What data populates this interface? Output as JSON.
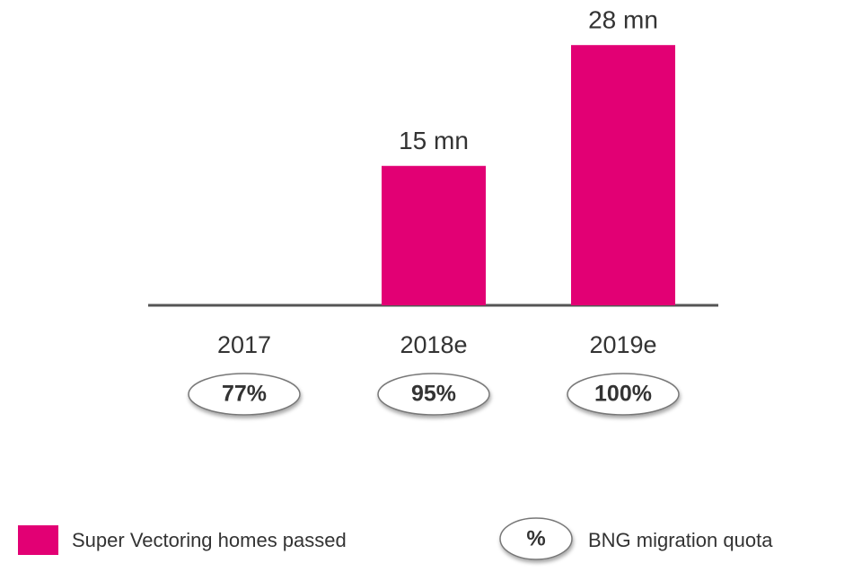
{
  "chart_data": {
    "type": "bar",
    "categories": [
      "2017",
      "2018e",
      "2019e"
    ],
    "series": [
      {
        "name": "Super Vectoring homes passed",
        "color": "#e20074",
        "values": [
          null,
          15,
          28
        ],
        "value_labels": [
          null,
          "15 mn",
          "28 mn"
        ]
      }
    ],
    "quota": {
      "name": "BNG migration quota",
      "symbol": "%",
      "values": [
        77,
        95,
        100
      ],
      "value_labels": [
        "77%",
        "95%",
        "100%"
      ]
    }
  }
}
